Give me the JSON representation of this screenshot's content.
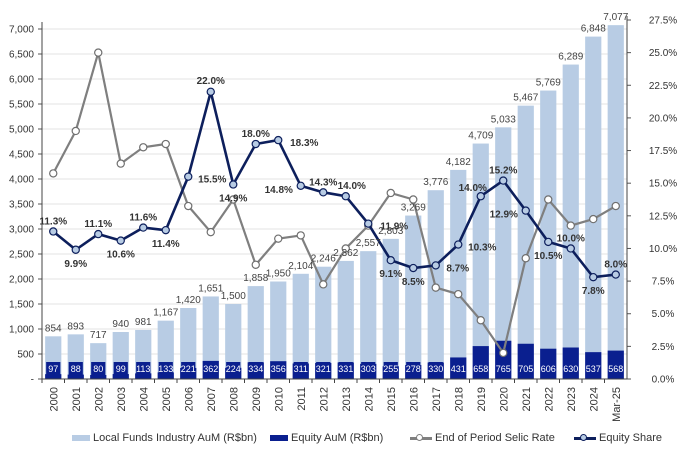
{
  "chart_data": {
    "type": "bar",
    "title": "",
    "categories": [
      "2000",
      "2001",
      "2002",
      "2003",
      "2004",
      "2005",
      "2006",
      "2007",
      "2008",
      "2009",
      "2010",
      "2011",
      "2012",
      "2013",
      "2014",
      "2015",
      "2016",
      "2017",
      "2018",
      "2019",
      "2020",
      "2021",
      "2022",
      "2023",
      "2024",
      "Mar-25"
    ],
    "series": [
      {
        "name": "Local Funds Industry AuM (R$bn)",
        "type": "bar",
        "axis": "left",
        "color": "#b8cce4",
        "values": [
          854,
          893,
          717,
          940,
          981,
          1167,
          1420,
          1651,
          1500,
          1858,
          1950,
          2104,
          2246,
          2362,
          2557,
          2803,
          3269,
          3776,
          4182,
          4709,
          5033,
          5467,
          5769,
          6289,
          6848,
          7077
        ]
      },
      {
        "name": "Equity AuM (R$bn)",
        "type": "bar",
        "axis": "left",
        "color": "#0a1f8f",
        "values": [
          97,
          88,
          80,
          99,
          113,
          133,
          221,
          362,
          224,
          334,
          356,
          311,
          321,
          331,
          303,
          255,
          278,
          330,
          431,
          658,
          765,
          705,
          606,
          630,
          537,
          568
        ]
      },
      {
        "name": "End of Period Selic Rate",
        "type": "line",
        "axis": "right",
        "color": "#7f7f7f",
        "values": [
          15.75,
          19.0,
          25.0,
          16.5,
          17.75,
          18.0,
          13.25,
          11.25,
          13.75,
          8.75,
          10.75,
          11.0,
          7.25,
          10.0,
          11.75,
          14.25,
          13.75,
          7.0,
          6.5,
          4.5,
          2.0,
          9.25,
          13.75,
          11.75,
          12.25,
          13.25
        ]
      },
      {
        "name": "Equity Share",
        "type": "line",
        "axis": "right",
        "color": "#0d1f5c",
        "values": [
          11.3,
          9.9,
          11.1,
          10.6,
          11.6,
          11.4,
          15.5,
          22.0,
          14.9,
          18.0,
          18.3,
          14.8,
          14.3,
          14.0,
          11.9,
          9.1,
          8.5,
          8.7,
          10.3,
          14.0,
          15.2,
          12.9,
          10.5,
          10.0,
          7.8,
          8.0
        ],
        "labels": [
          "11.3%",
          "9.9%",
          "11.1%",
          "10.6%",
          "11.6%",
          "11.4%",
          "15.5%",
          "22.0%",
          "14.9%",
          "18.0%",
          "18.3%",
          "14.8%",
          "14.3%",
          "14.0%",
          "11.9%",
          "9.1%",
          "8.5%",
          "8.7%",
          "10.3%",
          "14.0%",
          "15.2%",
          "12.9%",
          "10.5%",
          "10.0%",
          "7.8%",
          "8.0%"
        ]
      }
    ],
    "bar_labels": [
      "854",
      "893",
      "717",
      "940",
      "981",
      "1,167",
      "1,420",
      "1,651",
      "1,500",
      "1,858",
      "1,950",
      "2,104",
      "2,246",
      "2,362",
      "2,557",
      "2,803",
      "3,269",
      "3,776",
      "4,182",
      "4,709",
      "5,033",
      "5,467",
      "5,769",
      "6,289",
      "6,848",
      "7,077"
    ],
    "equity_labels": [
      "97",
      "88",
      "80",
      "99",
      "113",
      "133",
      "221",
      "362",
      "224",
      "334",
      "356",
      "311",
      "321",
      "331",
      "303",
      "255",
      "278",
      "330",
      "431",
      "658",
      "765",
      "705",
      "606",
      "630",
      "537",
      "568"
    ],
    "y_left": {
      "ylim": [
        0,
        7000
      ],
      "ticks": [
        0,
        500,
        1000,
        1500,
        2000,
        2500,
        3000,
        3500,
        4000,
        4500,
        5000,
        5500,
        6000,
        6500,
        7000
      ],
      "tick_labels": [
        "-",
        "500",
        "1,000",
        "1,500",
        "2,000",
        "2,500",
        "3,000",
        "3,500",
        "4,000",
        "4,500",
        "5,000",
        "5,500",
        "6,000",
        "6,500",
        "7,000"
      ]
    },
    "y_right": {
      "ylim": [
        0,
        27.5
      ],
      "ticks": [
        0,
        2.5,
        5,
        7.5,
        10,
        12.5,
        15,
        17.5,
        20,
        22.5,
        25,
        27.5
      ],
      "tick_labels": [
        "0.0%",
        "2.5%",
        "5.0%",
        "7.5%",
        "10.0%",
        "12.5%",
        "15.0%",
        "17.5%",
        "20.0%",
        "22.5%",
        "25.0%",
        "27.5%"
      ]
    },
    "xlabel": "",
    "ylabel": "",
    "grid": true,
    "legend": {
      "position": "bottom",
      "items": [
        {
          "label": "Local Funds Industry AuM (R$bn)",
          "kind": "bar",
          "color": "#b8cce4"
        },
        {
          "label": "Equity AuM (R$bn)",
          "kind": "bar",
          "color": "#0a1f8f"
        },
        {
          "label": "End of Period Selic Rate",
          "kind": "line",
          "color": "#7f7f7f"
        },
        {
          "label": "Equity Share",
          "kind": "line",
          "color": "#0d1f5c"
        }
      ]
    }
  }
}
